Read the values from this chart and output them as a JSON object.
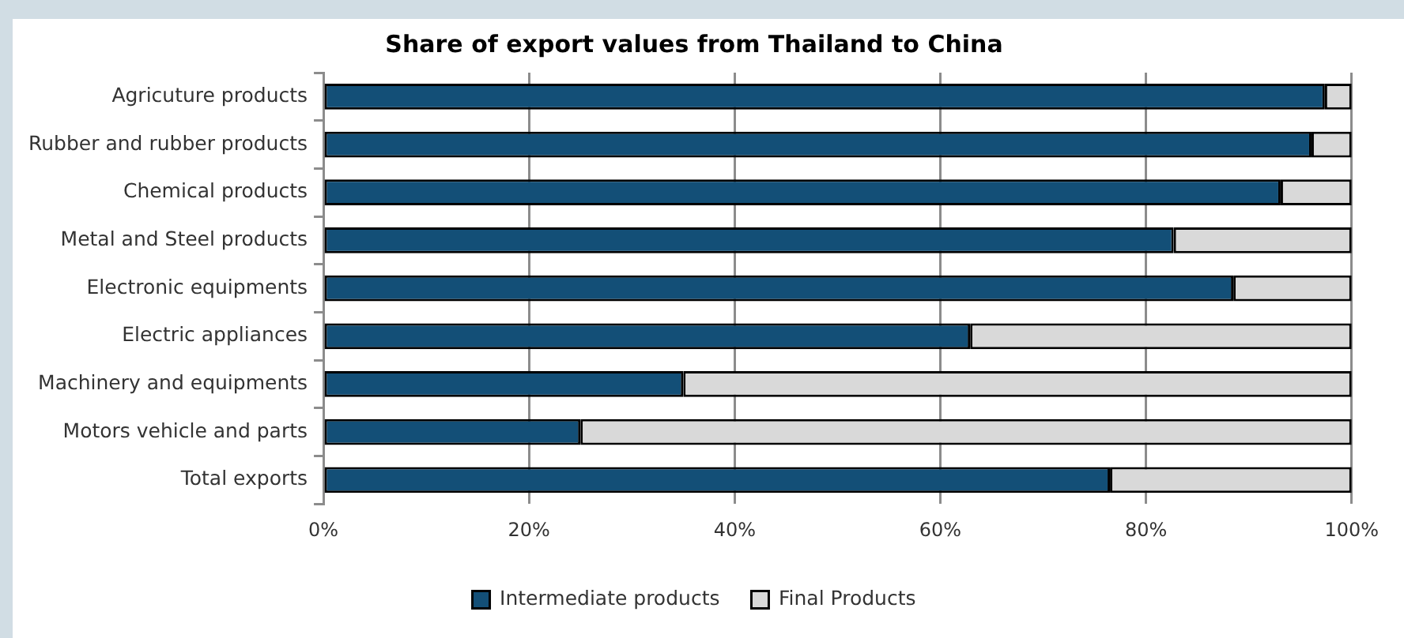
{
  "chart_data": {
    "type": "bar",
    "orientation": "horizontal",
    "stacked": true,
    "title": "Share of export values from Thailand to China",
    "categories": [
      "Agricuture products",
      "Rubber and rubber products",
      "Chemical products",
      "Metal and Steel products",
      "Electronic equipments",
      "Electric appliances",
      "Machinery and equipments",
      "Motors vehicle and parts",
      "Total exports"
    ],
    "series": [
      {
        "name": "Intermediate products",
        "color": "#134f77",
        "values": [
          97.4,
          96.1,
          93.1,
          82.7,
          88.5,
          62.9,
          35.0,
          25.0,
          76.5
        ]
      },
      {
        "name": "Final Products",
        "color": "#d9d9d9",
        "values": [
          2.6,
          3.9,
          6.9,
          17.3,
          11.5,
          37.1,
          65.0,
          75.0,
          23.5
        ]
      }
    ],
    "xlim": [
      0,
      100
    ],
    "xticks": [
      {
        "value": 0,
        "label": "0%"
      },
      {
        "value": 20,
        "label": "20%"
      },
      {
        "value": 40,
        "label": "40%"
      },
      {
        "value": 60,
        "label": "60%"
      },
      {
        "value": 80,
        "label": "80%"
      },
      {
        "value": 100,
        "label": "100%"
      }
    ],
    "grid": "x",
    "legend": "bottom"
  }
}
